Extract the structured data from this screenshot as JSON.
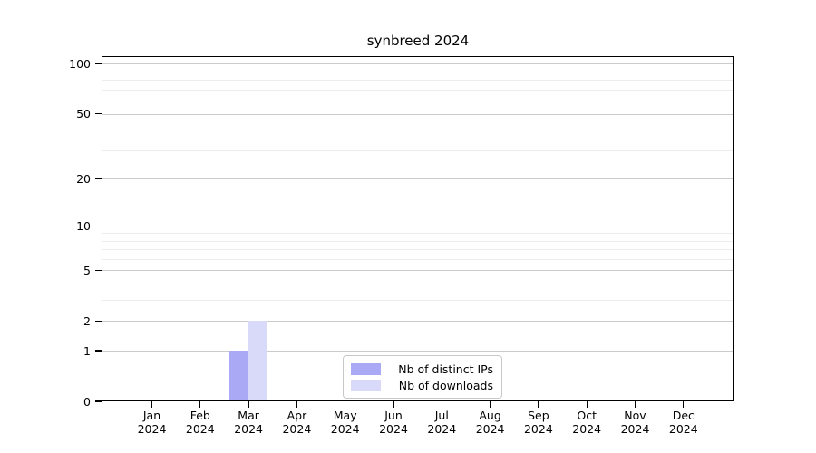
{
  "chart_data": {
    "type": "bar",
    "title": "synbreed 2024",
    "xlabel": "",
    "ylabel": "",
    "yscale": "log1p",
    "ylim": [
      0,
      111
    ],
    "grid": "horizontal",
    "legend_position": "bottom-center-inside",
    "x_months": [
      "Jan",
      "Feb",
      "Mar",
      "Apr",
      "May",
      "Jun",
      "Jul",
      "Aug",
      "Sep",
      "Oct",
      "Nov",
      "Dec"
    ],
    "x_year": "2024",
    "y_major_ticks": [
      0,
      1,
      2,
      5,
      10,
      20,
      50,
      100
    ],
    "y_minor_gridlines": [
      3,
      4,
      6,
      7,
      8,
      9,
      30,
      40,
      60,
      70,
      80,
      90
    ],
    "series": [
      {
        "name": "Nb of distinct IPs",
        "color": "#a9a9f5",
        "values": [
          0,
          0,
          1,
          0,
          0,
          0,
          0,
          0,
          0,
          0,
          0,
          0
        ]
      },
      {
        "name": "Nb of downloads",
        "color": "#d9d9f9",
        "values": [
          0,
          0,
          2,
          0,
          0,
          0,
          0,
          0,
          0,
          0,
          0,
          0
        ]
      }
    ],
    "colors": {
      "major_gridline": "#cbcbcb",
      "minor_gridline": "#ececec",
      "axis_spine": "#000000",
      "legend_border": "#c8c8c8",
      "background": "#ffffff",
      "text": "#000000"
    }
  }
}
